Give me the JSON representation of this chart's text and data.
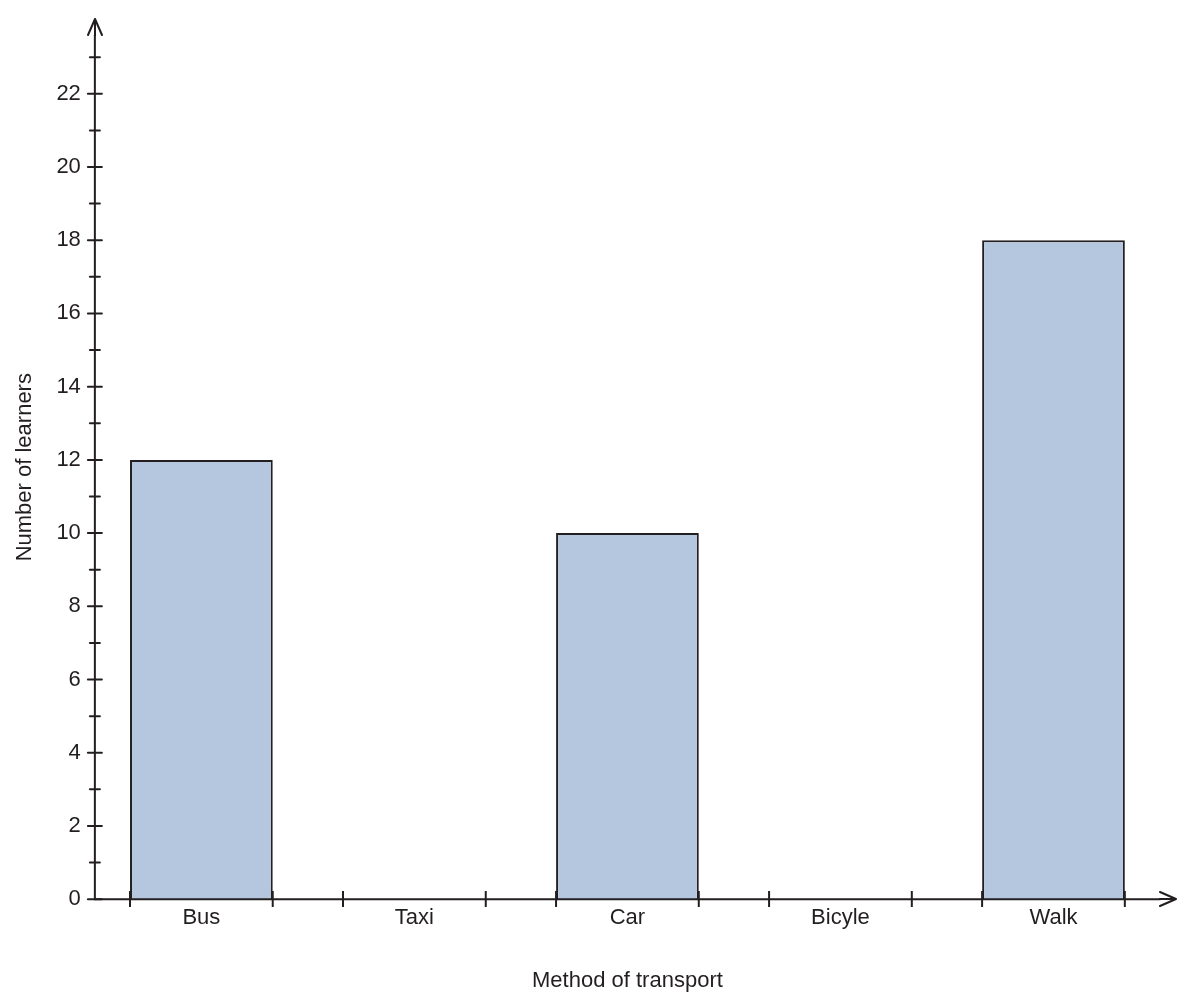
{
  "chart_data": {
    "type": "bar",
    "xlabel": "Method of transport",
    "ylabel": "Number of learners",
    "categories": [
      "Bus",
      "Taxi",
      "Car",
      "Bicyle",
      "Walk"
    ],
    "values": [
      12,
      0,
      10,
      0,
      18
    ],
    "color": "#b5c7de",
    "ylim": [
      0,
      23.6
    ],
    "yticks": [
      0,
      {
        "value": 1,
        "label": null
      },
      2,
      {
        "value": 3,
        "label": null
      },
      4,
      {
        "value": 5,
        "label": null
      },
      6,
      {
        "value": 7,
        "label": null
      },
      8,
      {
        "value": 9,
        "label": null
      },
      10,
      {
        "value": 11,
        "label": null
      },
      12,
      {
        "value": 13,
        "label": null
      },
      14,
      {
        "value": 15,
        "label": null
      },
      16,
      {
        "value": 17,
        "label": null
      },
      18,
      {
        "value": 19,
        "label": null
      },
      20,
      {
        "value": 21,
        "label": null
      },
      22,
      {
        "value": 23,
        "label": null
      }
    ],
    "grid": false,
    "legend": false
  }
}
